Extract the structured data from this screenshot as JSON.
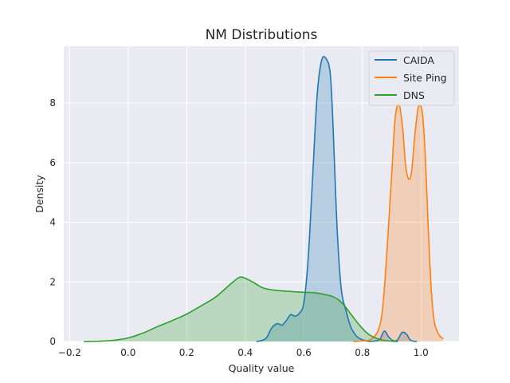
{
  "chart_data": {
    "type": "area",
    "kind": "kde",
    "title": "NM Distributions",
    "xlabel": "Quality value",
    "ylabel": "Density",
    "xlim": [
      -0.22,
      1.13
    ],
    "ylim": [
      0,
      9.9
    ],
    "xticks": [
      "−0.2",
      "0.0",
      "0.2",
      "0.4",
      "0.6",
      "0.8",
      "1.0"
    ],
    "xtick_values": [
      -0.2,
      0.0,
      0.2,
      0.4,
      0.6,
      0.8,
      1.0
    ],
    "yticks": [
      "0",
      "2",
      "4",
      "6",
      "8"
    ],
    "ytick_values": [
      0,
      2,
      4,
      6,
      8
    ],
    "grid": true,
    "background": "#eaeaf2",
    "legend_position": "upper right",
    "series": [
      {
        "name": "CAIDA",
        "color": "#1f77b4",
        "points": [
          [
            0.44,
            0
          ],
          [
            0.47,
            0.1
          ],
          [
            0.49,
            0.45
          ],
          [
            0.51,
            0.6
          ],
          [
            0.525,
            0.55
          ],
          [
            0.54,
            0.7
          ],
          [
            0.555,
            0.9
          ],
          [
            0.57,
            0.85
          ],
          [
            0.585,
            0.95
          ],
          [
            0.6,
            1.3
          ],
          [
            0.615,
            2.8
          ],
          [
            0.63,
            5.5
          ],
          [
            0.645,
            8.2
          ],
          [
            0.66,
            9.4
          ],
          [
            0.675,
            9.5
          ],
          [
            0.69,
            9.0
          ],
          [
            0.7,
            7.2
          ],
          [
            0.71,
            4.6
          ],
          [
            0.72,
            2.7
          ],
          [
            0.73,
            1.6
          ],
          [
            0.745,
            1.0
          ],
          [
            0.76,
            0.5
          ],
          [
            0.78,
            0.18
          ],
          [
            0.8,
            0.06
          ],
          [
            0.82,
            0.01
          ],
          [
            0.845,
            0.02
          ],
          [
            0.86,
            0.08
          ],
          [
            0.875,
            0.35
          ],
          [
            0.89,
            0.15
          ],
          [
            0.905,
            0.03
          ],
          [
            0.92,
            0.05
          ],
          [
            0.935,
            0.3
          ],
          [
            0.95,
            0.25
          ],
          [
            0.965,
            0.04
          ],
          [
            0.985,
            0
          ]
        ]
      },
      {
        "name": "Site Ping",
        "color": "#ff7f0e",
        "points": [
          [
            0.77,
            0
          ],
          [
            0.8,
            0.02
          ],
          [
            0.83,
            0.08
          ],
          [
            0.855,
            0.4
          ],
          [
            0.87,
            1.2
          ],
          [
            0.885,
            3.2
          ],
          [
            0.9,
            5.6
          ],
          [
            0.912,
            7.5
          ],
          [
            0.925,
            7.95
          ],
          [
            0.937,
            7.2
          ],
          [
            0.948,
            5.9
          ],
          [
            0.958,
            5.45
          ],
          [
            0.968,
            5.7
          ],
          [
            0.98,
            7.0
          ],
          [
            0.992,
            7.9
          ],
          [
            1.005,
            7.65
          ],
          [
            1.015,
            6.2
          ],
          [
            1.025,
            3.8
          ],
          [
            1.035,
            1.8
          ],
          [
            1.045,
            0.7
          ],
          [
            1.06,
            0.25
          ],
          [
            1.075,
            0.1
          ]
        ]
      },
      {
        "name": "DNS",
        "color": "#2ca02c",
        "points": [
          [
            -0.15,
            0
          ],
          [
            -0.1,
            0.01
          ],
          [
            -0.05,
            0.04
          ],
          [
            0.0,
            0.12
          ],
          [
            0.05,
            0.28
          ],
          [
            0.1,
            0.5
          ],
          [
            0.15,
            0.7
          ],
          [
            0.2,
            0.92
          ],
          [
            0.25,
            1.2
          ],
          [
            0.3,
            1.5
          ],
          [
            0.35,
            1.93
          ],
          [
            0.38,
            2.15
          ],
          [
            0.4,
            2.12
          ],
          [
            0.43,
            1.97
          ],
          [
            0.46,
            1.8
          ],
          [
            0.5,
            1.72
          ],
          [
            0.55,
            1.68
          ],
          [
            0.6,
            1.65
          ],
          [
            0.63,
            1.64
          ],
          [
            0.66,
            1.6
          ],
          [
            0.7,
            1.5
          ],
          [
            0.73,
            1.3
          ],
          [
            0.76,
            0.93
          ],
          [
            0.79,
            0.55
          ],
          [
            0.82,
            0.25
          ],
          [
            0.85,
            0.1
          ],
          [
            0.88,
            0.03
          ],
          [
            0.92,
            0
          ]
        ]
      }
    ]
  }
}
